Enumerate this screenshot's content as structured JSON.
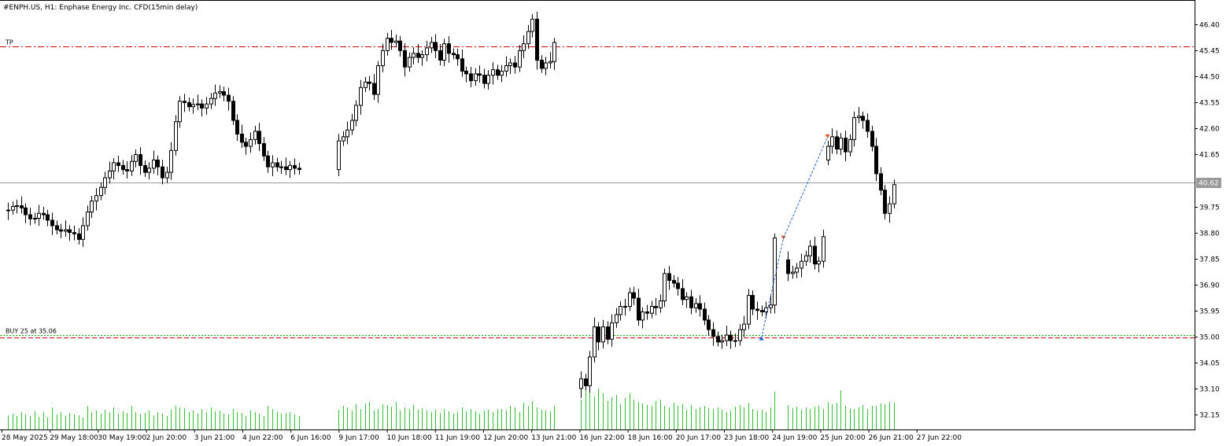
{
  "chart_data": {
    "type": "candlestick",
    "title": "#ENPH.US, H1:  Enphase Energy Inc. CFD(15min delay)",
    "ylim": [
      31.6,
      47.3
    ],
    "y_ticks": [
      "46.40",
      "45.45",
      "44.50",
      "43.55",
      "42.60",
      "41.65",
      "40.62",
      "39.75",
      "38.80",
      "37.85",
      "36.90",
      "35.95",
      "35.00",
      "34.05",
      "33.10",
      "32.15"
    ],
    "current_price": "40.62",
    "x_ticks": [
      "28 May 2025",
      "29 May 18:00",
      "30 May 19:00",
      "2 Jun 20:00",
      "3 Jun 21:00",
      "4 Jun 22:00",
      "6 Jun 16:00",
      "9 Jun 17:00",
      "10 Jun 18:00",
      "11 Jun 19:00",
      "12 Jun 20:00",
      "13 Jun 21:00",
      "16 Jun 22:00",
      "18 Jun 16:00",
      "20 Jun 17:00",
      "23 Jun 18:00",
      "24 Jun 19:00",
      "25 Jun 20:00",
      "26 Jun 21:00",
      "27 Jun 22:00"
    ],
    "levels": [
      {
        "label": "TP",
        "value": 45.6,
        "color": "#cc0000",
        "style": "dashdot"
      },
      {
        "label": "BUY 25 at 35.06",
        "value": 35.06,
        "color": "#00aa00",
        "style": "dotted"
      },
      {
        "label": "",
        "value": 34.97,
        "color": "#cc0000",
        "style": "dashed"
      }
    ],
    "trade_markers": [
      {
        "from_index": 171,
        "from_price": 34.95,
        "to_index": 176,
        "to_price": 38.6,
        "color": "#1f5fd6"
      },
      {
        "from_index": 176,
        "from_price": 38.6,
        "to_index": 186,
        "to_price": 42.3,
        "color": "#1f5fd6"
      }
    ],
    "segments": [
      {
        "start": 0,
        "base": 39.6,
        "closes": [
          39.62,
          39.75,
          39.78,
          39.7,
          39.45,
          39.3,
          39.32,
          39.5,
          39.45,
          39.25,
          39.05,
          38.9,
          38.85,
          38.9,
          38.8,
          38.75,
          38.55,
          39.05,
          39.55,
          39.95,
          40.15,
          40.45,
          40.8,
          41.05,
          41.35,
          41.25,
          41.1,
          41.05,
          41.4,
          41.65,
          41.25,
          41.0,
          41.15,
          41.45,
          41.2,
          40.8,
          41.0,
          41.8,
          42.85,
          43.6,
          43.55,
          43.4,
          43.48,
          43.5,
          43.35,
          43.5,
          43.7,
          43.9,
          43.95,
          43.82,
          43.6,
          42.9,
          42.4,
          42.1,
          41.95,
          42.2,
          42.5,
          42.05,
          41.6,
          41.2,
          41.35,
          41.2,
          41.2,
          41.1,
          41.25,
          41.15,
          41.1
        ]
      },
      {
        "start": 75,
        "base": 41.1,
        "closes": [
          42.15,
          42.3,
          42.55,
          42.9,
          43.45,
          44.1,
          44.3,
          44.25,
          43.85,
          44.9,
          45.45,
          45.9,
          45.75,
          45.8,
          45.45,
          44.85,
          45.2,
          45.35,
          45.2,
          45.3,
          45.55,
          45.75,
          45.45,
          45.1,
          45.7,
          45.35,
          45.3,
          45.15,
          44.7,
          44.6,
          44.35,
          44.6,
          44.55,
          44.25,
          44.55,
          44.75,
          44.55,
          44.7,
          44.9,
          45.0,
          44.85,
          45.45,
          45.7,
          46.15,
          46.6,
          45.1,
          44.8,
          45.0,
          45.05,
          45.75
        ]
      },
      {
        "start": 130,
        "base": 33.1,
        "closes": [
          33.45,
          33.2,
          34.25,
          35.35,
          34.8,
          35.35,
          34.9,
          35.5,
          35.8,
          36.1,
          36.1,
          36.6,
          36.4,
          35.6,
          35.9,
          35.85,
          36.1,
          36.05,
          36.3,
          37.3,
          37.05,
          36.95,
          36.75,
          36.35,
          36.45,
          36.05,
          36.2,
          36.0,
          35.6,
          35.25,
          35.0,
          34.8,
          34.85,
          35.05,
          34.85,
          34.85,
          35.25,
          35.45,
          36.5,
          36.0,
          35.95,
          35.9,
          36.05,
          36.15,
          38.6
        ]
      },
      {
        "start": 177,
        "base": 37.8,
        "closes": [
          37.3,
          37.35,
          37.5,
          37.75,
          37.95,
          38.3,
          37.65,
          37.75,
          38.65
        ]
      },
      {
        "start": 186,
        "base": 41.45,
        "closes": [
          41.95,
          42.3,
          41.85,
          42.25,
          41.75,
          42.2,
          43.0,
          43.05,
          42.9,
          42.5,
          41.95,
          40.95,
          40.35,
          39.5,
          39.85,
          40.55
        ]
      }
    ],
    "volume": {
      "segments": [
        {
          "start": 0,
          "values": [
            18,
            20,
            17,
            22,
            19,
            17,
            23,
            16,
            22,
            15,
            28,
            19,
            22,
            18,
            21,
            19,
            18,
            15,
            30,
            22,
            24,
            20,
            25,
            22,
            28,
            20,
            23,
            21,
            30,
            22,
            20,
            21,
            24,
            18,
            22,
            20,
            17,
            25,
            30,
            28,
            27,
            22,
            24,
            20,
            26,
            22,
            28,
            23,
            24,
            20,
            19,
            26,
            22,
            21,
            17,
            24,
            22,
            20,
            17,
            30,
            26,
            22,
            20,
            21,
            22,
            19,
            17
          ]
        },
        {
          "start": 75,
          "values": [
            25,
            30,
            28,
            24,
            32,
            26,
            33,
            35,
            24,
            26,
            32,
            31,
            29,
            35,
            24,
            28,
            26,
            31,
            25,
            27,
            24,
            22,
            25,
            21,
            26,
            23,
            20,
            22,
            28,
            23,
            26,
            23,
            20,
            24,
            25,
            22,
            25,
            26,
            24,
            30,
            28,
            22,
            34,
            30,
            36,
            28,
            25,
            24,
            23,
            30
          ]
        },
        {
          "start": 130,
          "values": [
            38,
            55,
            48,
            42,
            52,
            46,
            36,
            41,
            44,
            32,
            40,
            46,
            38,
            35,
            33,
            31,
            30,
            36,
            38,
            30,
            28,
            34,
            30,
            32,
            25,
            31,
            26,
            28,
            30,
            27,
            26,
            28,
            25,
            22,
            24,
            29,
            31,
            28,
            34,
            26,
            24,
            25,
            22,
            28,
            48
          ]
        },
        {
          "start": 177,
          "values": [
            31,
            27,
            29,
            25,
            28,
            26,
            29,
            30,
            26
          ]
        },
        {
          "start": 186,
          "values": [
            35,
            32,
            34,
            50,
            30,
            27,
            26,
            28,
            31,
            26,
            30,
            30,
            33,
            32,
            35,
            34
          ]
        }
      ]
    }
  }
}
